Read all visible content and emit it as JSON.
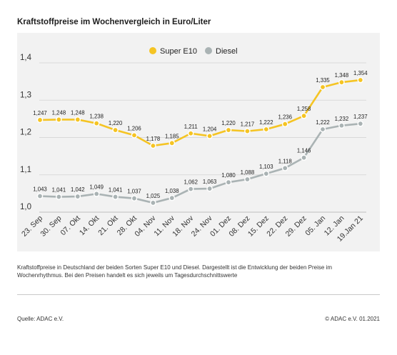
{
  "header": {
    "title": "Kraftstoffpreise im Wochenvergleich in Euro/Liter"
  },
  "chart_data": {
    "type": "line",
    "categories": [
      "23. Sep",
      "30. Sep",
      "07. Okt",
      "14. Okt",
      "21. Okt",
      "28. Okt",
      "04. Nov",
      "11. Nov",
      "18. Nov",
      "24. Nov",
      "01. Dez",
      "08. Dez",
      "15. Dez",
      "22. Dez",
      "29. Dez",
      "05. Jan",
      "12. Jan",
      "19.Jan 21"
    ],
    "series": [
      {
        "name": "Super E10",
        "color": "#f5c423",
        "values": [
          1.247,
          1.248,
          1.248,
          1.238,
          1.22,
          1.206,
          1.178,
          1.185,
          1.211,
          1.204,
          1.22,
          1.217,
          1.222,
          1.236,
          1.258,
          1.335,
          1.348,
          1.354
        ],
        "labels": [
          "1,247",
          "1,248",
          "1,248",
          "1,238",
          "1,220",
          "1,206",
          "1,178",
          "1,185",
          "1,211",
          "1,204",
          "1,220",
          "1,217",
          "1,222",
          "1,236",
          "1,258",
          "1,335",
          "1,348",
          "1,354"
        ]
      },
      {
        "name": "Diesel",
        "color": "#aab3b4",
        "values": [
          1.043,
          1.041,
          1.042,
          1.049,
          1.041,
          1.037,
          1.025,
          1.038,
          1.062,
          1.063,
          1.08,
          1.088,
          1.103,
          1.118,
          1.146,
          1.222,
          1.232,
          1.237
        ],
        "labels": [
          "1,043",
          "1,041",
          "1,042",
          "1,049",
          "1,041",
          "1,037",
          "1,025",
          "1,038",
          "1,062",
          "1,063",
          "1,080",
          "1,088",
          "1,103",
          "1,118",
          "1,146",
          "1,222",
          "1,232",
          "1,237"
        ]
      }
    ],
    "ylim": [
      1.0,
      1.4
    ],
    "yticks": [
      1.0,
      1.1,
      1.2,
      1.3,
      1.4
    ],
    "ytick_labels": [
      "1,0",
      "1,1",
      "1,2",
      "1,3",
      "1,4"
    ],
    "legend_position": "top-center",
    "grid": true
  },
  "caption": "Kraftstoffpreise in Deutschland der beiden Sorten Super E10 und Diesel. Dargestellt ist die Entwicklung der beiden Preise im Wochenrhythmus. Bei den Preisen handelt es sich jeweils um Tagesdurchschnittswerte",
  "footer": {
    "source": "Quelle: ADAC e.V.",
    "copyright": "© ADAC e.V. 01.2021"
  }
}
